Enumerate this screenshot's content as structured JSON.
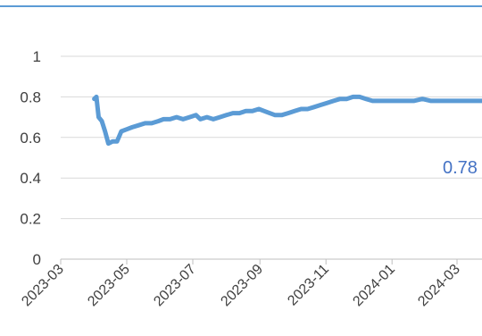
{
  "chart_data": {
    "type": "line",
    "title": "",
    "xlabel": "",
    "ylabel": "",
    "ylim": [
      0,
      1
    ],
    "y_ticks": [
      0,
      0.2,
      0.4,
      0.6,
      0.8,
      1
    ],
    "y_tick_labels": [
      "0",
      "0.2",
      "0.4",
      "0.6",
      "0.8",
      "1"
    ],
    "x_ticks": [
      "2023-03",
      "2023-05",
      "2023-07",
      "2023-09",
      "2023-11",
      "2024-01",
      "2024-03"
    ],
    "grid": true,
    "line_color": "#5b9bd5",
    "gridline_color": "#d9d9d9",
    "end_label": "0.78",
    "end_label_color": "#4472c4",
    "series": [
      {
        "points": [
          [
            "2023-04-01",
            0.79
          ],
          [
            "2023-04-03",
            0.8
          ],
          [
            "2023-04-05",
            0.7
          ],
          [
            "2023-04-08",
            0.68
          ],
          [
            "2023-04-11",
            0.63
          ],
          [
            "2023-04-14",
            0.57
          ],
          [
            "2023-04-18",
            0.58
          ],
          [
            "2023-04-22",
            0.58
          ],
          [
            "2023-04-26",
            0.63
          ],
          [
            "2023-05-01",
            0.64
          ],
          [
            "2023-05-06",
            0.65
          ],
          [
            "2023-05-12",
            0.66
          ],
          [
            "2023-05-18",
            0.67
          ],
          [
            "2023-05-24",
            0.67
          ],
          [
            "2023-05-30",
            0.68
          ],
          [
            "2023-06-04",
            0.69
          ],
          [
            "2023-06-10",
            0.69
          ],
          [
            "2023-06-16",
            0.7
          ],
          [
            "2023-06-22",
            0.69
          ],
          [
            "2023-06-28",
            0.7
          ],
          [
            "2023-07-04",
            0.71
          ],
          [
            "2023-07-08",
            0.69
          ],
          [
            "2023-07-14",
            0.7
          ],
          [
            "2023-07-20",
            0.69
          ],
          [
            "2023-07-26",
            0.7
          ],
          [
            "2023-08-01",
            0.71
          ],
          [
            "2023-08-07",
            0.72
          ],
          [
            "2023-08-13",
            0.72
          ],
          [
            "2023-08-19",
            0.73
          ],
          [
            "2023-08-25",
            0.73
          ],
          [
            "2023-08-31",
            0.74
          ],
          [
            "2023-09-05",
            0.73
          ],
          [
            "2023-09-10",
            0.72
          ],
          [
            "2023-09-15",
            0.71
          ],
          [
            "2023-09-21",
            0.71
          ],
          [
            "2023-09-27",
            0.72
          ],
          [
            "2023-10-03",
            0.73
          ],
          [
            "2023-10-09",
            0.74
          ],
          [
            "2023-10-15",
            0.74
          ],
          [
            "2023-10-21",
            0.75
          ],
          [
            "2023-10-27",
            0.76
          ],
          [
            "2023-11-02",
            0.77
          ],
          [
            "2023-11-08",
            0.78
          ],
          [
            "2023-11-14",
            0.79
          ],
          [
            "2023-11-20",
            0.79
          ],
          [
            "2023-11-26",
            0.8
          ],
          [
            "2023-12-02",
            0.8
          ],
          [
            "2023-12-08",
            0.79
          ],
          [
            "2023-12-14",
            0.78
          ],
          [
            "2023-12-20",
            0.78
          ],
          [
            "2023-12-28",
            0.78
          ],
          [
            "2024-01-05",
            0.78
          ],
          [
            "2024-01-13",
            0.78
          ],
          [
            "2024-01-21",
            0.78
          ],
          [
            "2024-01-29",
            0.79
          ],
          [
            "2024-02-06",
            0.78
          ],
          [
            "2024-02-14",
            0.78
          ],
          [
            "2024-02-22",
            0.78
          ],
          [
            "2024-03-01",
            0.78
          ],
          [
            "2024-03-09",
            0.78
          ],
          [
            "2024-03-17",
            0.78
          ],
          [
            "2024-03-25",
            0.78
          ],
          [
            "2024-04-01",
            0.78
          ]
        ]
      }
    ]
  }
}
